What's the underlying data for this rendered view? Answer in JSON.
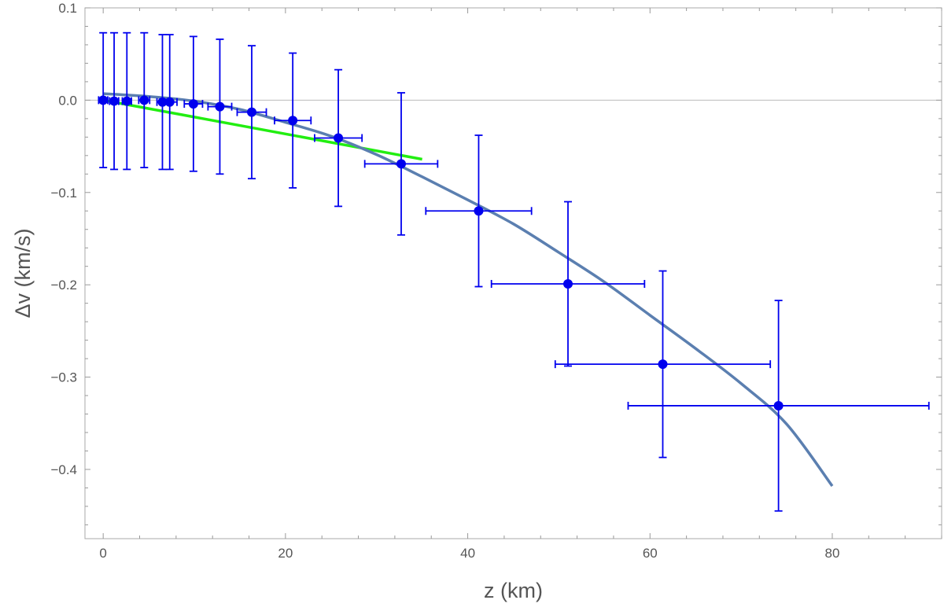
{
  "chart_data": {
    "type": "scatter",
    "xlabel": "z (km)",
    "ylabel": "Δv (km/s)",
    "xlim": [
      -2,
      92
    ],
    "ylim": [
      -0.475,
      0.1
    ],
    "x_ticks": [
      0,
      20,
      40,
      60,
      80
    ],
    "x_tick_labels": [
      "0",
      "20",
      "40",
      "60",
      "80"
    ],
    "y_ticks": [
      0.1,
      0.0,
      -0.1,
      -0.2,
      -0.3,
      -0.4
    ],
    "y_tick_labels": [
      "0.1",
      "0.0",
      "-0.1",
      "-0.2",
      "-0.3",
      "-0.4"
    ],
    "grid": false,
    "zero_line": true,
    "colors": {
      "points": "#0000ee",
      "fit_curve": "#5b7fb0",
      "linear_fit": "#22ee11",
      "frame": "#aaaaaa",
      "zero_line": "#bbbbbb"
    },
    "points": [
      {
        "x": 0.0,
        "y": 0.0,
        "y_err": 0.073,
        "x_err": 0.5
      },
      {
        "x": 1.2,
        "y": -0.001,
        "y_err": 0.074,
        "x_err": 0.5
      },
      {
        "x": 2.6,
        "y": -0.001,
        "y_err": 0.074,
        "x_err": 0.5
      },
      {
        "x": 4.5,
        "y": 0.0,
        "y_err": 0.073,
        "x_err": 0.6
      },
      {
        "x": 6.5,
        "y": -0.002,
        "y_err": 0.073,
        "x_err": 0.6
      },
      {
        "x": 7.3,
        "y": -0.002,
        "y_err": 0.073,
        "x_err": 0.8
      },
      {
        "x": 9.9,
        "y": -0.004,
        "y_err": 0.073,
        "x_err": 1.0
      },
      {
        "x": 12.8,
        "y": -0.007,
        "y_err": 0.073,
        "x_err": 1.3
      },
      {
        "x": 16.3,
        "y": -0.013,
        "y_err": 0.072,
        "x_err": 1.6
      },
      {
        "x": 20.8,
        "y": -0.022,
        "y_err": 0.073,
        "x_err": 2.0
      },
      {
        "x": 25.8,
        "y": -0.041,
        "y_err": 0.074,
        "x_err": 2.6
      },
      {
        "x": 32.7,
        "y": -0.069,
        "y_err": 0.077,
        "x_err": 4.0
      },
      {
        "x": 41.2,
        "y": -0.12,
        "y_err": 0.082,
        "x_err": 5.8
      },
      {
        "x": 51.0,
        "y": -0.199,
        "y_err": 0.089,
        "x_err": 8.4
      },
      {
        "x": 61.4,
        "y": -0.286,
        "y_err": 0.101,
        "x_err": 11.8
      },
      {
        "x": 74.1,
        "y": -0.331,
        "y_err": 0.114,
        "x_err": 16.5
      }
    ],
    "fit_curve": {
      "x": [
        0,
        5,
        10,
        15,
        20,
        25,
        30,
        35,
        40,
        45,
        50,
        55,
        60,
        65,
        70,
        75,
        80
      ],
      "y": [
        0.007,
        0.004,
        -0.001,
        -0.01,
        -0.024,
        -0.039,
        -0.059,
        -0.083,
        -0.108,
        -0.134,
        -0.165,
        -0.197,
        -0.233,
        -0.269,
        -0.307,
        -0.351,
        -0.418
      ]
    },
    "linear_fit": {
      "x": [
        0,
        35
      ],
      "y": [
        0.0,
        -0.064
      ]
    }
  }
}
